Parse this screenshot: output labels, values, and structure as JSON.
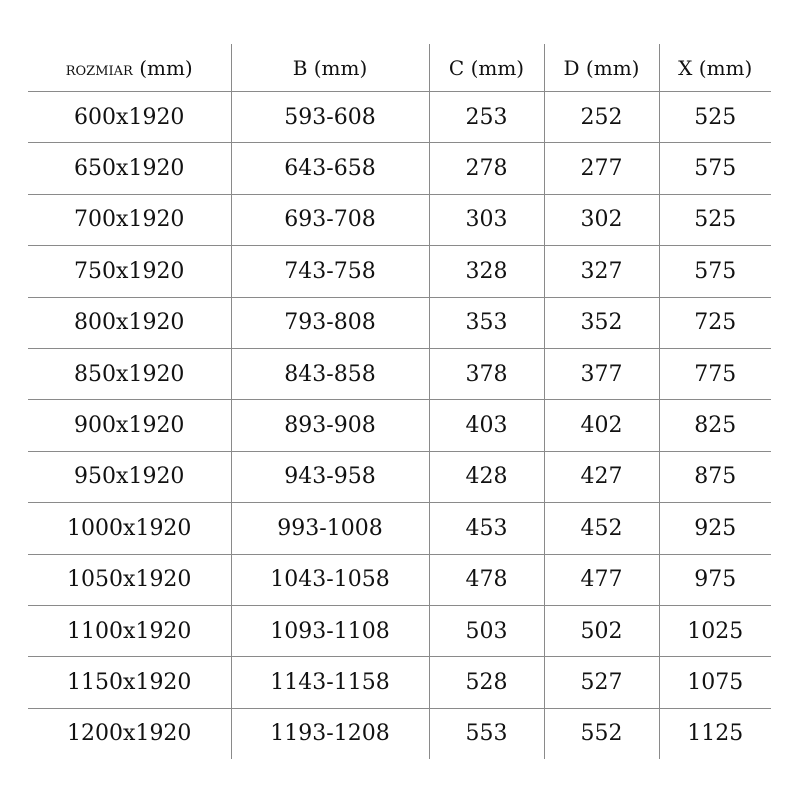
{
  "table": {
    "headers": [
      {
        "main": "ROZMIAR",
        "unit": "(mm)"
      },
      {
        "main": "B",
        "unit": "(mm)"
      },
      {
        "main": "C",
        "unit": "(mm)"
      },
      {
        "main": "D",
        "unit": "(mm)"
      },
      {
        "main": "X",
        "unit": "(mm)"
      }
    ],
    "rows": [
      [
        "600x1920",
        "593-608",
        "253",
        "252",
        "525"
      ],
      [
        "650x1920",
        "643-658",
        "278",
        "277",
        "575"
      ],
      [
        "700x1920",
        "693-708",
        "303",
        "302",
        "525"
      ],
      [
        "750x1920",
        "743-758",
        "328",
        "327",
        "575"
      ],
      [
        "800x1920",
        "793-808",
        "353",
        "352",
        "725"
      ],
      [
        "850x1920",
        "843-858",
        "378",
        "377",
        "775"
      ],
      [
        "900x1920",
        "893-908",
        "403",
        "402",
        "825"
      ],
      [
        "950x1920",
        "943-958",
        "428",
        "427",
        "875"
      ],
      [
        "1000x1920",
        "993-1008",
        "453",
        "452",
        "925"
      ],
      [
        "1050x1920",
        "1043-1058",
        "478",
        "477",
        "975"
      ],
      [
        "1100x1920",
        "1093-1108",
        "503",
        "502",
        "1025"
      ],
      [
        "1150x1920",
        "1143-1158",
        "528",
        "527",
        "1075"
      ],
      [
        "1200x1920",
        "1193-1208",
        "553",
        "552",
        "1125"
      ]
    ]
  }
}
